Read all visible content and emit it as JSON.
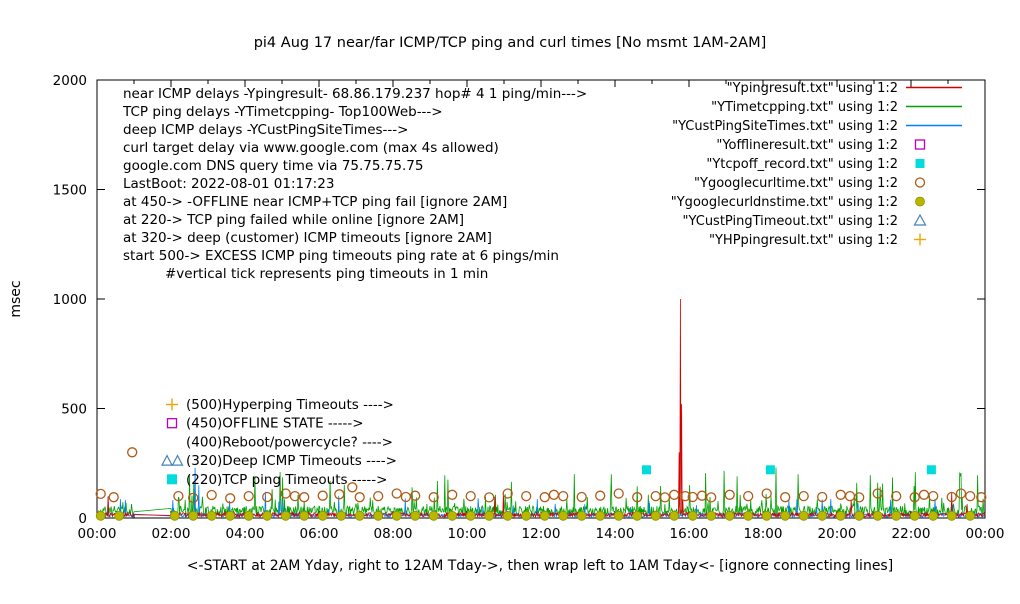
{
  "chart_data": {
    "type": "line",
    "title": "pi4 Aug 17  near/far ICMP/TCP ping and curl times [No msmt 1AM-2AM]",
    "xlabel": "<-START at 2AM Yday, right to 12AM Tday->, then wrap left to 1AM Tday<- [ignore connecting lines]",
    "ylabel": "msec",
    "ylim": [
      0,
      2000
    ],
    "xlim_hours": [
      0,
      24
    ],
    "y_ticks": [
      0,
      500,
      1000,
      1500,
      2000
    ],
    "x_tick_labels": [
      "00:00",
      "02:00",
      "04:00",
      "06:00",
      "08:00",
      "10:00",
      "12:00",
      "14:00",
      "16:00",
      "18:00",
      "20:00",
      "22:00",
      "00:00"
    ],
    "no_measurement_gap_hours": [
      1,
      2
    ],
    "info_lines": [
      "near ICMP delays -Ypingresult- 68.86.179.237 hop# 4 1 ping/min--->",
      "TCP ping delays -YTimetcpping- Top100Web--->",
      "deep ICMP delays -YCustPingSiteTimes--->",
      "curl target delay via www.google.com (max 4s allowed)",
      "google.com DNS query time via 75.75.75.75",
      "LastBoot: 2022-08-01 01:17:23",
      "at 450-> -OFFLINE near ICMP+TCP ping fail [ignore 2AM]",
      "at 220-> TCP ping failed while online [ignore 2AM]",
      "at 320-> deep (customer) ICMP timeouts [ignore 2AM]",
      "start 500-> EXCESS ICMP ping timeouts ping rate at 6 pings/min",
      "#vertical tick represents ping timeouts in 1 min"
    ],
    "level_labels": [
      {
        "marker": "plus",
        "color": "#f0a500",
        "value": 500,
        "label": "(500)Hyperping Timeouts ---->"
      },
      {
        "marker": "open-square",
        "color": "#bd00bd",
        "value": 450,
        "label": "(450)OFFLINE STATE ----->"
      },
      {
        "marker": "none",
        "color": "",
        "value": 400,
        "label": "(400)Reboot/powercycle? ---->"
      },
      {
        "marker": "open-triangle-double",
        "color": "#4682b4",
        "value": 320,
        "label": "(320)Deep ICMP Timeouts ---->"
      },
      {
        "marker": "filled-square",
        "color": "#00dcdc",
        "value": 220,
        "label": "(220)TCP ping Timeouts ----->"
      }
    ],
    "legend": [
      {
        "label": "\"Ypingresult.txt\" using 1:2",
        "sample": "line",
        "color": "#d40000"
      },
      {
        "label": "\"YTimetcpping.txt\" using 1:2",
        "sample": "line",
        "color": "#00a000"
      },
      {
        "label": "\"YCustPingSiteTimes.txt\" using 1:2",
        "sample": "line",
        "color": "#0080ff"
      },
      {
        "label": "\"Yofflineresult.txt\" using 1:2",
        "sample": "open-square",
        "color": "#bd00bd"
      },
      {
        "label": "\"Ytcpoff_record.txt\" using 1:2",
        "sample": "filled-square",
        "color": "#00dcdc"
      },
      {
        "label": "\"Ygooglecurltime.txt\" using 1:2",
        "sample": "open-circle",
        "color": "#b05a14"
      },
      {
        "label": "\"Ygooglecurldnstime.txt\" using 1:2",
        "sample": "filled-circle",
        "color": "#b8b800"
      },
      {
        "label": "\"YCustPingTimeout.txt\" using 1:2",
        "sample": "open-triangle",
        "color": "#4682b4"
      },
      {
        "label": "\"YHPpingresult.txt\" using 1:2",
        "sample": "plus",
        "color": "#f0a500"
      }
    ],
    "series": {
      "near_icmp": {
        "label": "Ypingresult.txt",
        "style": "line",
        "color": "#d40000",
        "seed": 101,
        "noise": {
          "min": 5,
          "span": 20,
          "p1": 0.006,
          "s1min": 50,
          "s1span": 70,
          "p2": 0,
          "s2min": 0,
          "s2span": 0
        },
        "spikes": [
          [
            15.73,
            300
          ],
          [
            15.76,
            1000
          ],
          [
            15.8,
            520
          ],
          [
            15.83,
            80
          ]
        ]
      },
      "tcp_ping": {
        "label": "YTimetcpping.txt",
        "style": "line",
        "color": "#00a000",
        "seed": 202,
        "noise": {
          "min": 10,
          "span": 45,
          "p1": 0.06,
          "s1min": 60,
          "s1span": 50,
          "p2": 0.015,
          "s2min": 130,
          "s2span": 80
        },
        "spikes": [
          [
            2.5,
            200
          ],
          [
            2.62,
            160
          ],
          [
            4.95,
            210
          ],
          [
            6.3,
            170
          ],
          [
            9.4,
            195
          ],
          [
            11.2,
            165
          ],
          [
            13.9,
            200
          ],
          [
            16.45,
            205
          ],
          [
            16.95,
            215
          ],
          [
            17.3,
            190
          ],
          [
            18.35,
            230
          ],
          [
            18.95,
            200
          ],
          [
            20.9,
            195
          ],
          [
            21.5,
            185
          ],
          [
            23.35,
            205
          ],
          [
            23.8,
            195
          ]
        ]
      },
      "deep_icmp": {
        "label": "YCustPingSiteTimes.txt",
        "style": "line",
        "color": "#0080ff",
        "seed": 303,
        "noise": {
          "min": 4,
          "span": 18,
          "p1": 0.02,
          "s1min": 40,
          "s1span": 60,
          "p2": 0,
          "s2min": 0,
          "s2span": 0
        },
        "spikes": [
          [
            0.3,
            100
          ],
          [
            2.65,
            230
          ],
          [
            2.75,
            150
          ],
          [
            4.55,
            120
          ],
          [
            10.3,
            90
          ],
          [
            19.6,
            85
          ]
        ]
      },
      "curl_time": {
        "label": "Ygooglecurltime.txt",
        "marker": "open-circle",
        "color": "#b05a14",
        "points": [
          [
            0.1,
            110
          ],
          [
            0.45,
            95
          ],
          [
            0.95,
            300
          ],
          [
            2.2,
            100
          ],
          [
            2.6,
            92
          ],
          [
            3.1,
            105
          ],
          [
            3.6,
            90
          ],
          [
            4.1,
            100
          ],
          [
            4.6,
            96
          ],
          [
            5.1,
            112
          ],
          [
            5.35,
            100
          ],
          [
            5.6,
            95
          ],
          [
            6.1,
            102
          ],
          [
            6.55,
            108
          ],
          [
            6.9,
            140
          ],
          [
            7.1,
            95
          ],
          [
            7.6,
            100
          ],
          [
            8.1,
            112
          ],
          [
            8.35,
            96
          ],
          [
            8.6,
            102
          ],
          [
            9.1,
            95
          ],
          [
            9.6,
            106
          ],
          [
            10.1,
            100
          ],
          [
            10.6,
            94
          ],
          [
            11.1,
            112
          ],
          [
            11.6,
            100
          ],
          [
            12.1,
            95
          ],
          [
            12.35,
            106
          ],
          [
            12.6,
            100
          ],
          [
            13.1,
            96
          ],
          [
            13.6,
            102
          ],
          [
            14.1,
            112
          ],
          [
            14.6,
            95
          ],
          [
            15.1,
            100
          ],
          [
            15.35,
            94
          ],
          [
            15.6,
            106
          ],
          [
            15.9,
            100
          ],
          [
            16.1,
            96
          ],
          [
            16.35,
            102
          ],
          [
            16.6,
            94
          ],
          [
            17.1,
            106
          ],
          [
            17.6,
            100
          ],
          [
            18.1,
            112
          ],
          [
            18.6,
            95
          ],
          [
            19.1,
            100
          ],
          [
            19.6,
            96
          ],
          [
            20.1,
            106
          ],
          [
            20.35,
            100
          ],
          [
            20.6,
            94
          ],
          [
            21.1,
            112
          ],
          [
            21.6,
            100
          ],
          [
            22.1,
            95
          ],
          [
            22.35,
            106
          ],
          [
            22.6,
            100
          ],
          [
            23.1,
            96
          ],
          [
            23.35,
            112
          ],
          [
            23.6,
            100
          ],
          [
            23.9,
            95
          ]
        ]
      },
      "dns_time": {
        "label": "Ygooglecurldnstime.txt",
        "marker": "filled-circle",
        "color": "#b8b800",
        "start_hour": 0.1,
        "interval_hours": 0.5,
        "value_ms": 10
      },
      "tcp_off": {
        "label": "Ytcpoff_record.txt",
        "marker": "filled-square",
        "color": "#00dcdc",
        "points": [
          [
            14.85,
            220
          ],
          [
            18.2,
            220
          ],
          [
            22.55,
            220
          ]
        ]
      }
    }
  }
}
